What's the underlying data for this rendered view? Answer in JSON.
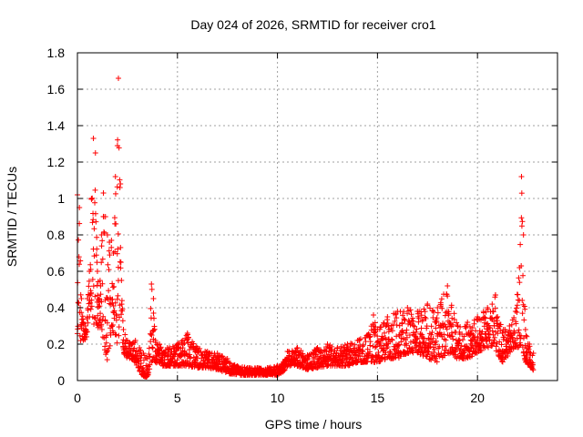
{
  "chart_data": {
    "type": "scatter",
    "title": "Day 024 of 2026, SRMTID for receiver cro1",
    "xlabel": "GPS time / hours",
    "ylabel": "SRMTID / TECUs",
    "xlim": [
      0,
      24
    ],
    "ylim": [
      0,
      1.8
    ],
    "x_ticks": [
      0,
      5,
      10,
      15,
      20
    ],
    "y_ticks": [
      0,
      0.2,
      0.4,
      0.6,
      0.8,
      1,
      1.2,
      1.4,
      1.6,
      1.8
    ],
    "x_tick_labels": [
      "0",
      "5",
      "10",
      "15",
      "20"
    ],
    "y_tick_labels": [
      "0",
      "0.2",
      "0.4",
      "0.6",
      "0.8",
      "1",
      "1.2",
      "1.4",
      "1.6",
      "1.8"
    ],
    "grid": true,
    "marker": "+",
    "color": "#ff0000",
    "series": [
      {
        "name": "SRMTID",
        "envelope": [
          [
            0.0,
            0.22,
            1.02
          ],
          [
            0.1,
            0.25,
            0.95
          ],
          [
            0.2,
            0.2,
            0.45
          ],
          [
            0.3,
            0.22,
            0.32
          ],
          [
            0.4,
            0.22,
            0.3
          ],
          [
            0.5,
            0.25,
            0.45
          ],
          [
            0.6,
            0.35,
            0.6
          ],
          [
            0.7,
            0.4,
            1.0
          ],
          [
            0.8,
            0.3,
            1.33
          ],
          [
            0.9,
            0.28,
            1.25
          ],
          [
            1.0,
            0.28,
            0.6
          ],
          [
            1.1,
            0.3,
            0.45
          ],
          [
            1.2,
            0.3,
            0.8
          ],
          [
            1.3,
            0.2,
            1.03
          ],
          [
            1.4,
            0.15,
            0.9
          ],
          [
            1.5,
            0.1,
            0.8
          ],
          [
            1.6,
            0.15,
            0.76
          ],
          [
            1.7,
            0.3,
            0.77
          ],
          [
            1.8,
            0.25,
            0.7
          ],
          [
            1.9,
            0.2,
            1.12
          ],
          [
            2.0,
            0.2,
            1.29
          ],
          [
            2.05,
            0.2,
            1.66
          ],
          [
            2.15,
            0.25,
            1.08
          ],
          [
            2.2,
            0.2,
            0.55
          ],
          [
            2.3,
            0.15,
            0.28
          ],
          [
            2.5,
            0.12,
            0.22
          ],
          [
            2.7,
            0.12,
            0.2
          ],
          [
            2.9,
            0.1,
            0.22
          ],
          [
            3.1,
            0.05,
            0.18
          ],
          [
            3.3,
            0.02,
            0.15
          ],
          [
            3.5,
            0.02,
            0.12
          ],
          [
            3.7,
            0.1,
            0.53
          ],
          [
            3.8,
            0.12,
            0.45
          ],
          [
            3.9,
            0.1,
            0.22
          ],
          [
            4.1,
            0.08,
            0.2
          ],
          [
            4.5,
            0.08,
            0.18
          ],
          [
            5.0,
            0.08,
            0.2
          ],
          [
            5.5,
            0.08,
            0.26
          ],
          [
            6.0,
            0.07,
            0.18
          ],
          [
            6.5,
            0.07,
            0.16
          ],
          [
            7.0,
            0.06,
            0.15
          ],
          [
            7.5,
            0.04,
            0.12
          ],
          [
            8.0,
            0.03,
            0.08
          ],
          [
            8.5,
            0.03,
            0.07
          ],
          [
            9.0,
            0.03,
            0.07
          ],
          [
            9.5,
            0.03,
            0.07
          ],
          [
            10.0,
            0.03,
            0.08
          ],
          [
            10.3,
            0.05,
            0.1
          ],
          [
            10.5,
            0.08,
            0.16
          ],
          [
            11.0,
            0.08,
            0.18
          ],
          [
            11.5,
            0.06,
            0.14
          ],
          [
            12.0,
            0.07,
            0.18
          ],
          [
            12.5,
            0.08,
            0.2
          ],
          [
            13.0,
            0.08,
            0.18
          ],
          [
            13.5,
            0.08,
            0.2
          ],
          [
            14.0,
            0.1,
            0.22
          ],
          [
            14.5,
            0.1,
            0.25
          ],
          [
            14.8,
            0.1,
            0.36
          ],
          [
            15.0,
            0.1,
            0.28
          ],
          [
            15.5,
            0.12,
            0.35
          ],
          [
            16.0,
            0.12,
            0.38
          ],
          [
            16.5,
            0.15,
            0.4
          ],
          [
            17.0,
            0.15,
            0.38
          ],
          [
            17.5,
            0.12,
            0.42
          ],
          [
            18.0,
            0.1,
            0.4
          ],
          [
            18.5,
            0.15,
            0.52
          ],
          [
            19.0,
            0.12,
            0.3
          ],
          [
            19.5,
            0.12,
            0.32
          ],
          [
            20.0,
            0.15,
            0.35
          ],
          [
            20.5,
            0.18,
            0.4
          ],
          [
            20.9,
            0.2,
            0.47
          ],
          [
            21.0,
            0.1,
            0.35
          ],
          [
            21.3,
            0.1,
            0.28
          ],
          [
            21.6,
            0.15,
            0.3
          ],
          [
            21.9,
            0.18,
            0.38
          ],
          [
            22.1,
            0.18,
            0.62
          ],
          [
            22.2,
            0.2,
            1.12
          ],
          [
            22.3,
            0.15,
            0.8
          ],
          [
            22.4,
            0.1,
            0.28
          ],
          [
            22.6,
            0.08,
            0.2
          ],
          [
            22.8,
            0.05,
            0.15
          ]
        ]
      }
    ]
  }
}
